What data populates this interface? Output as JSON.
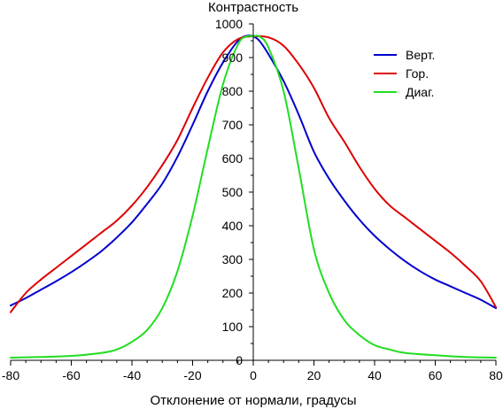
{
  "chart_data": {
    "type": "line",
    "ylabel": "Контрастность",
    "xlabel": "Отклонение от нормали, градусы",
    "xlim": [
      -80,
      80
    ],
    "ylim": [
      0,
      1000
    ],
    "x_ticks": [
      "-80",
      "-60",
      "-40",
      "-20",
      "0",
      "20",
      "40",
      "60",
      "80"
    ],
    "y_ticks": [
      "0",
      "100",
      "200",
      "300",
      "400",
      "500",
      "600",
      "700",
      "800",
      "900",
      "1000"
    ],
    "legend_position": "top-right",
    "series": [
      {
        "name": "Верт.",
        "color": "#0000cc",
        "x": [
          -80,
          -75,
          -70,
          -65,
          -60,
          -55,
          -50,
          -45,
          -40,
          -35,
          -30,
          -25,
          -20,
          -15,
          -10,
          -5,
          -2,
          0,
          2,
          5,
          10,
          15,
          20,
          25,
          30,
          35,
          40,
          45,
          50,
          55,
          60,
          65,
          70,
          75,
          80
        ],
        "y": [
          163,
          185,
          210,
          235,
          262,
          292,
          325,
          365,
          410,
          465,
          525,
          605,
          700,
          800,
          885,
          950,
          965,
          963,
          950,
          910,
          830,
          730,
          620,
          540,
          475,
          418,
          370,
          330,
          295,
          265,
          240,
          220,
          200,
          180,
          155
        ]
      },
      {
        "name": "Гор.",
        "color": "#dd0000",
        "x": [
          -80,
          -75,
          -70,
          -65,
          -60,
          -55,
          -50,
          -45,
          -40,
          -35,
          -30,
          -25,
          -20,
          -15,
          -10,
          -5,
          0,
          5,
          10,
          15,
          20,
          25,
          30,
          35,
          40,
          45,
          50,
          55,
          60,
          65,
          70,
          75,
          80
        ],
        "y": [
          143,
          200,
          240,
          275,
          310,
          345,
          380,
          415,
          460,
          515,
          580,
          655,
          750,
          840,
          915,
          955,
          963,
          960,
          935,
          880,
          810,
          720,
          650,
          575,
          510,
          460,
          425,
          390,
          355,
          320,
          280,
          235,
          158
        ]
      },
      {
        "name": "Диаг.",
        "color": "#22dd22",
        "x": [
          -80,
          -70,
          -60,
          -50,
          -45,
          -40,
          -35,
          -30,
          -25,
          -20,
          -15,
          -10,
          -5,
          -2,
          0,
          2,
          5,
          10,
          15,
          20,
          25,
          30,
          35,
          40,
          45,
          50,
          60,
          70,
          80
        ],
        "y": [
          8,
          10,
          13,
          22,
          32,
          55,
          90,
          155,
          265,
          430,
          630,
          820,
          940,
          963,
          963,
          963,
          930,
          800,
          570,
          330,
          200,
          120,
          75,
          45,
          32,
          22,
          15,
          10,
          8
        ]
      }
    ]
  }
}
